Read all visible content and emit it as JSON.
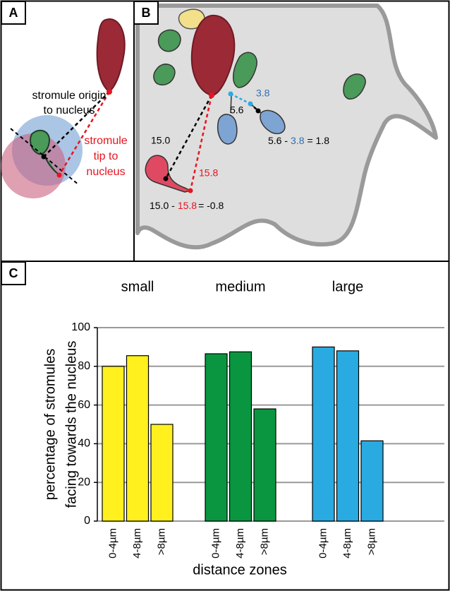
{
  "panel_a": {
    "label": "A",
    "origin_text": [
      "stromule origin",
      "to nucleus"
    ],
    "tip_text": [
      "stromule",
      "tip to",
      "nucleus"
    ]
  },
  "panel_b": {
    "label": "B",
    "distances": {
      "blue_origin": "5.6",
      "blue_tip": "3.8",
      "red_origin": "15.0",
      "red_tip": "15.8"
    },
    "equation_blue": [
      "5.6 -",
      "3.8",
      "= 1.8"
    ],
    "equation_red": [
      "15.0 -",
      "15.8",
      "= -0.8"
    ]
  },
  "panel_c": {
    "label": "C"
  },
  "chart_data": {
    "type": "bar",
    "ylabel": [
      "percentage of stromules",
      "facing towards the nucleus"
    ],
    "xlabel": "distance zones",
    "categories": [
      "0-4µm",
      "4-8µm",
      ">8µm"
    ],
    "series": [
      {
        "name": "small",
        "color": "#fff01e",
        "values": [
          80,
          85.5,
          50
        ]
      },
      {
        "name": "medium",
        "color": "#0a9640",
        "values": [
          86.5,
          87.5,
          58
        ]
      },
      {
        "name": "large",
        "color": "#29abe2",
        "values": [
          90,
          88,
          41.5
        ]
      }
    ],
    "ylim": [
      0,
      100
    ],
    "yticks": [
      0,
      20,
      40,
      60,
      80,
      100
    ],
    "grid": true
  }
}
